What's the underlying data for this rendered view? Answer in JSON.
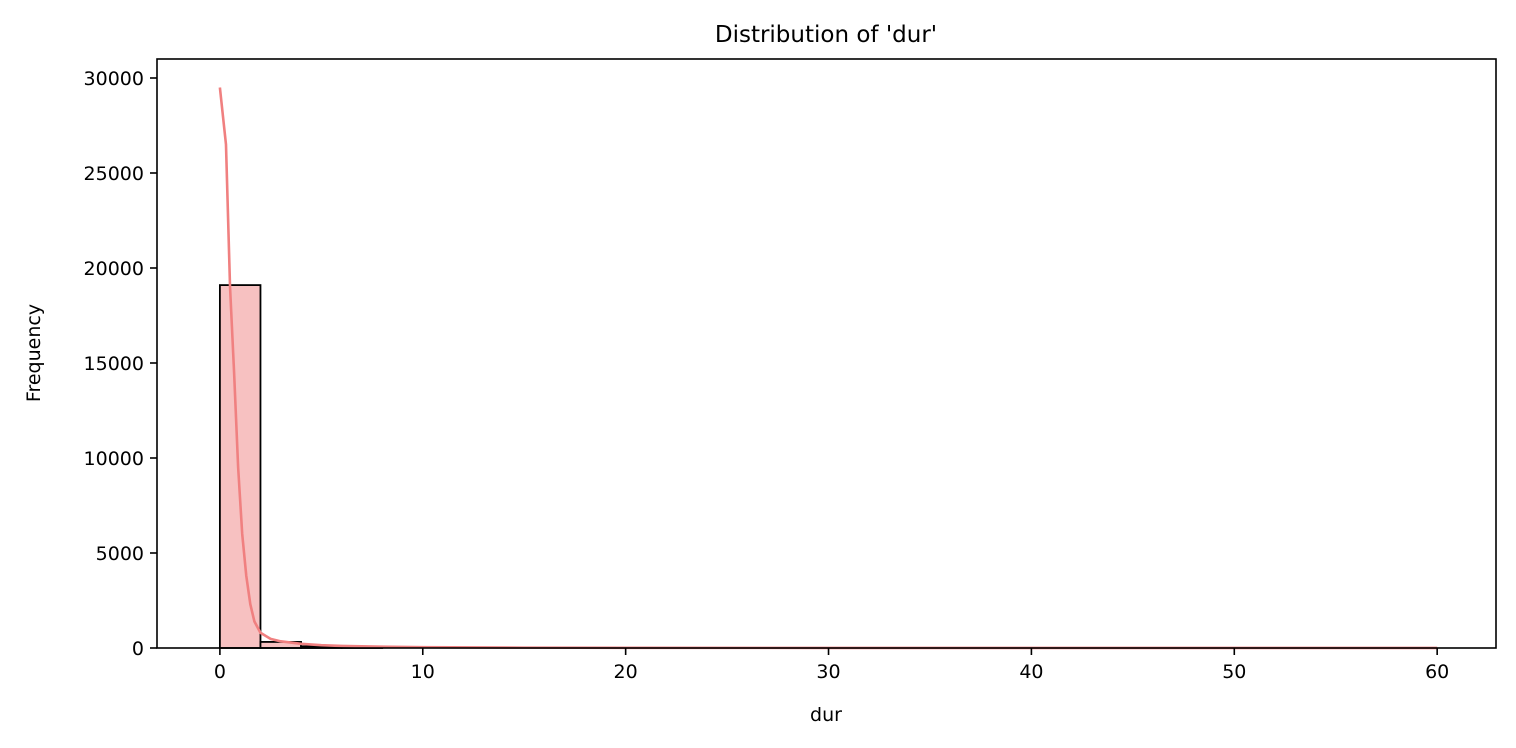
{
  "chart_data": {
    "type": "bar",
    "title": "Distribution of 'dur'",
    "xlabel": "dur",
    "ylabel": "Frequency",
    "xlim": [
      -3.1,
      62.9
    ],
    "ylim": [
      0,
      31000
    ],
    "xticks": [
      0,
      10,
      20,
      30,
      40,
      50,
      60
    ],
    "yticks": [
      0,
      5000,
      10000,
      15000,
      20000,
      25000,
      30000
    ],
    "bin_width": 2,
    "bins": [
      {
        "x0": 0,
        "x1": 2,
        "count": 19100
      },
      {
        "x0": 2,
        "x1": 4,
        "count": 320
      },
      {
        "x0": 4,
        "x1": 6,
        "count": 90
      },
      {
        "x0": 6,
        "x1": 8,
        "count": 40
      },
      {
        "x0": 8,
        "x1": 10,
        "count": 20
      },
      {
        "x0": 10,
        "x1": 12,
        "count": 12
      },
      {
        "x0": 12,
        "x1": 14,
        "count": 8
      },
      {
        "x0": 14,
        "x1": 16,
        "count": 5
      },
      {
        "x0": 16,
        "x1": 18,
        "count": 4
      },
      {
        "x0": 18,
        "x1": 20,
        "count": 3
      },
      {
        "x0": 20,
        "x1": 22,
        "count": 2
      },
      {
        "x0": 22,
        "x1": 24,
        "count": 2
      },
      {
        "x0": 24,
        "x1": 26,
        "count": 1
      },
      {
        "x0": 26,
        "x1": 28,
        "count": 1
      },
      {
        "x0": 28,
        "x1": 30,
        "count": 1
      },
      {
        "x0": 30,
        "x1": 32,
        "count": 3
      },
      {
        "x0": 32,
        "x1": 34,
        "count": 1
      },
      {
        "x0": 34,
        "x1": 36,
        "count": 0
      },
      {
        "x0": 36,
        "x1": 38,
        "count": 0
      },
      {
        "x0": 38,
        "x1": 40,
        "count": 0
      },
      {
        "x0": 40,
        "x1": 42,
        "count": 0
      },
      {
        "x0": 42,
        "x1": 44,
        "count": 0
      },
      {
        "x0": 44,
        "x1": 46,
        "count": 0
      },
      {
        "x0": 46,
        "x1": 48,
        "count": 0
      },
      {
        "x0": 48,
        "x1": 50,
        "count": 1
      },
      {
        "x0": 50,
        "x1": 52,
        "count": 1
      },
      {
        "x0": 52,
        "x1": 54,
        "count": 0
      },
      {
        "x0": 54,
        "x1": 56,
        "count": 0
      },
      {
        "x0": 56,
        "x1": 58,
        "count": 0
      },
      {
        "x0": 58,
        "x1": 60,
        "count": 1
      }
    ],
    "kde": {
      "x": [
        0,
        0.3,
        0.5,
        0.7,
        0.9,
        1.1,
        1.3,
        1.5,
        1.7,
        2.0,
        2.5,
        3.0,
        4.0,
        5.0,
        6.0,
        8.0,
        10.0,
        15.0,
        20.0,
        30.0,
        40.0,
        50.0,
        60.0
      ],
      "y": [
        29500,
        26500,
        19000,
        14500,
        9500,
        6000,
        3800,
        2300,
        1400,
        800,
        480,
        350,
        220,
        150,
        110,
        70,
        45,
        20,
        10,
        5,
        3,
        2,
        1
      ]
    },
    "grid": false,
    "legend": "none",
    "colors": {
      "bar_fill": "#f7c1c1",
      "bar_edge": "#000000",
      "kde_line": "#f08080",
      "axes": "#000000"
    }
  }
}
